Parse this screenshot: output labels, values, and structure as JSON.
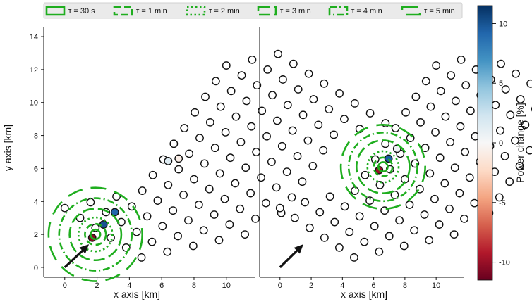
{
  "chart_data": [
    {
      "type": "scatter",
      "panel": "left",
      "xlabel": "x axis [km]",
      "ylabel": "y axis [km]",
      "xlim": [
        -1.3,
        11.8
      ],
      "ylim": [
        -0.6,
        14.6
      ],
      "xticks": [
        0,
        2,
        4,
        6,
        8,
        10
      ],
      "yticks": [
        0,
        2,
        4,
        6,
        8,
        10,
        12,
        14
      ],
      "wind_arrow": {
        "from": [
          0,
          0
        ],
        "to": [
          1.5,
          1.4
        ]
      },
      "neutral_color": "#ffffff",
      "highlighted_turbines": [
        {
          "x": 1.7,
          "y": 1.8,
          "power_change": -10.5
        },
        {
          "x": 2.4,
          "y": 2.6,
          "power_change": 10.0
        },
        {
          "x": 3.1,
          "y": 3.35,
          "power_change": 9.2
        },
        {
          "x": 6.4,
          "y": 6.45,
          "power_change": 1.5
        },
        {
          "x": 7.05,
          "y": 6.6,
          "power_change": -0.8
        }
      ],
      "circle_center": [
        1.9,
        2.0
      ],
      "circles": [
        {
          "tau": "τ = 30 s",
          "radius_km": 0.3
        },
        {
          "tau": "τ = 1 min",
          "radius_km": 0.65
        },
        {
          "tau": "τ = 2 min",
          "radius_km": 1.05
        },
        {
          "tau": "τ = 3 min",
          "radius_km": 1.6
        },
        {
          "tau": "τ = 4 min",
          "radius_km": 2.25
        },
        {
          "tau": "τ = 5 min",
          "radius_km": 2.9
        }
      ]
    },
    {
      "type": "scatter",
      "panel": "right",
      "xlabel": "x axis [km]",
      "ylabel": "",
      "xlim": [
        -1.3,
        11.8
      ],
      "ylim": [
        -0.6,
        14.6
      ],
      "xticks": [
        0,
        2,
        4,
        6,
        8,
        10
      ],
      "yticks": [],
      "wind_arrow": {
        "from": [
          0,
          0
        ],
        "to": [
          1.5,
          1.4
        ]
      },
      "neutral_color": "#ffffff",
      "highlighted_turbines": [
        {
          "x": 6.35,
          "y": 5.9,
          "power_change": -10.0
        },
        {
          "x": 6.95,
          "y": 6.6,
          "power_change": 9.5
        },
        {
          "x": 7.5,
          "y": 7.2,
          "power_change": 0.5
        }
      ],
      "circle_center": [
        6.6,
        6.1
      ],
      "circles": [
        {
          "tau": "τ = 30 s",
          "radius_km": 0.3
        },
        {
          "tau": "τ = 1 min",
          "radius_km": 0.6
        },
        {
          "tau": "τ = 2 min",
          "radius_km": 1.0
        },
        {
          "tau": "τ = 3 min",
          "radius_km": 1.7
        },
        {
          "tau": "τ = 4 min",
          "radius_km": 2.2
        },
        {
          "tau": "τ = 5 min",
          "radius_km": 2.7
        }
      ]
    }
  ],
  "turbine_grid": {
    "origin": [
      0.0,
      0.0
    ],
    "row_vector": [
      0.65,
      0.95
    ],
    "col_vector": [
      0.95,
      -0.6
    ],
    "row_counts": [
      6,
      6,
      6,
      6,
      7,
      7,
      8,
      8,
      8,
      8,
      8,
      8,
      8,
      8
    ],
    "row_offsets": [
      0,
      1,
      2,
      3,
      3,
      3,
      3,
      3,
      3,
      3,
      3,
      3,
      4,
      5
    ]
  },
  "legend": {
    "color": "#1fae1f",
    "entries": [
      {
        "label": "τ = 30 s",
        "style": "solid"
      },
      {
        "label": "τ = 1 min",
        "style": "dash"
      },
      {
        "label": "τ = 2 min",
        "style": "dot"
      },
      {
        "label": "τ = 3 min",
        "style": "longdash"
      },
      {
        "label": "τ = 4 min",
        "style": "dashdot"
      },
      {
        "label": "τ = 5 min",
        "style": "longdashgap"
      }
    ]
  },
  "colorbar": {
    "label": "Power change [%]",
    "min": -11.5,
    "max": 11.5,
    "ticks": [
      10,
      5,
      0,
      -5,
      -10
    ],
    "colors": [
      "#67001f",
      "#b2182b",
      "#d6604d",
      "#f4a582",
      "#fddbc7",
      "#f7f7f7",
      "#d1e5f0",
      "#92c5de",
      "#4393c3",
      "#2166ac",
      "#053061"
    ]
  }
}
